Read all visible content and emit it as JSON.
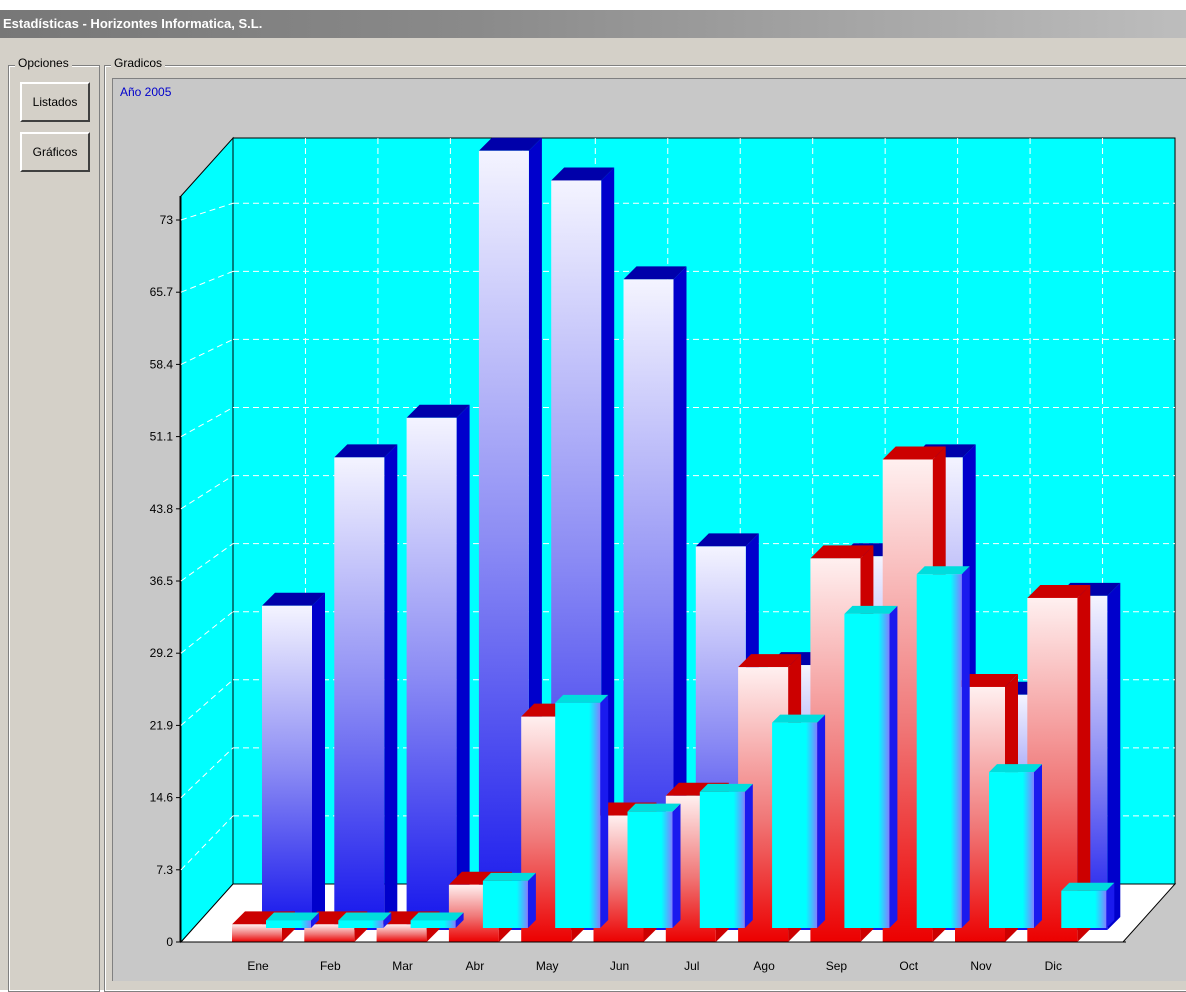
{
  "window": {
    "title": "Estadísticas - Horizontes Informatica, S.L."
  },
  "sidebar": {
    "group_label": "Opciones",
    "buttons": [
      {
        "label": "Listados"
      },
      {
        "label": "Gráficos"
      }
    ]
  },
  "main": {
    "group_label": "Gradicos",
    "chart_heading": "Año 2005"
  },
  "colors": {
    "plot_background": "#00ffff",
    "series_blue": "#2222ee",
    "series_red": "#ee0000",
    "series_cyan": "#00ffff"
  },
  "chart_data": {
    "type": "bar",
    "title": "Año 2005",
    "categories": [
      "Ene",
      "Feb",
      "Mar",
      "Abr",
      "May",
      "Jun",
      "Jul",
      "Ago",
      "Sep",
      "Oct",
      "Nov",
      "Dic"
    ],
    "y_ticks": [
      "0",
      "7.3",
      "14.6",
      "21.9",
      "29.2",
      "36.5",
      "43.8",
      "51.1",
      "58.4",
      "65.7",
      "73"
    ],
    "ylim": [
      0,
      80
    ],
    "grid": true,
    "series": [
      {
        "values": [
          34,
          49,
          53,
          80,
          77,
          67,
          40,
          28,
          39,
          49,
          25,
          35
        ]
      },
      {
        "values": [
          3,
          3,
          3,
          7,
          24,
          14,
          16,
          29,
          40,
          50,
          27,
          36
        ]
      },
      {
        "values": [
          4,
          4,
          4,
          8,
          26,
          15,
          17,
          24,
          35,
          39,
          19,
          7
        ]
      }
    ]
  }
}
